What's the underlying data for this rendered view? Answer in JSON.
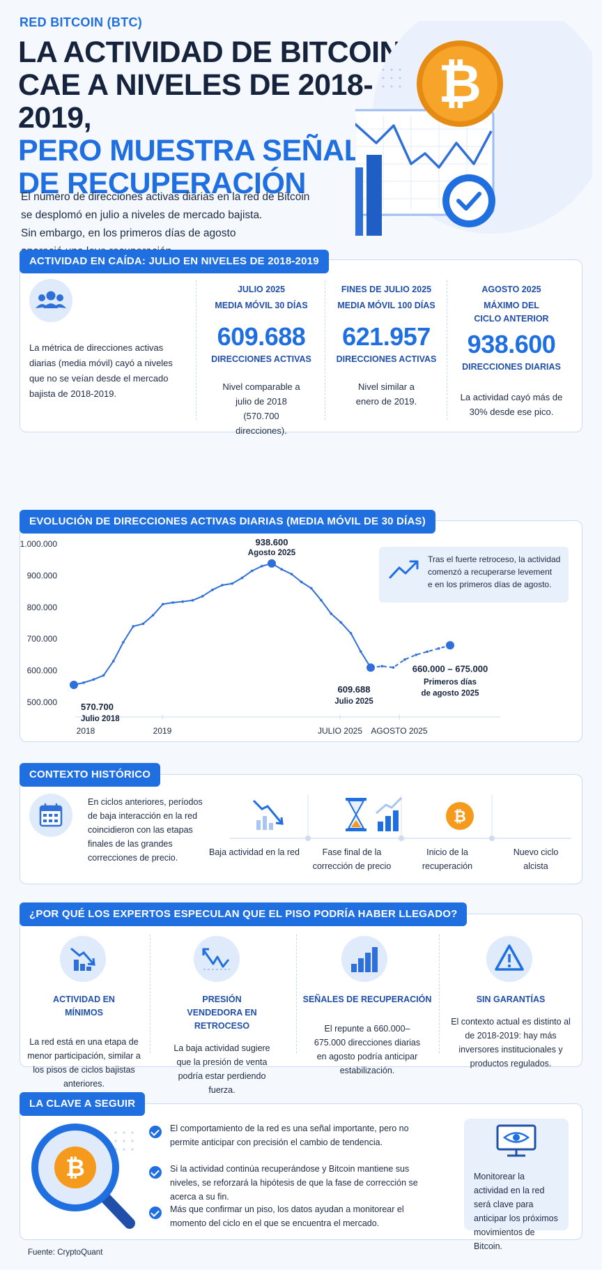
{
  "header": {
    "eyebrow": "RED BITCOIN (BTC)",
    "title_lines": [
      "LA ACTIVIDAD DE BITCOIN",
      "CAE A NIVELES DE 2018-2019,",
      "PERO MUESTRA SEÑALES",
      "DE RECUPERACIÓN"
    ],
    "intro_lines": [
      "El número de direcciones activas diarias en la red de Bitcoin",
      "se desplomó en julio a niveles de mercado bajista.",
      "Sin embargo, en los primeros días de agosto",
      "apareció una leve recuperación."
    ]
  },
  "activity": {
    "pill": "ACTIVIDAD EN CAÍDA: JULIO EN NIVELES DE 2018-2019",
    "icon": "users-icon",
    "desc": "La métrica de direcciones activas diarias (media móvil) cayó a niveles que no se veían desde el mercado bajista de 2018-2019.",
    "stats": [
      {
        "h1": "JULIO 2025",
        "h2": "MEDIA MÓVIL 30 DÍAS",
        "value": "609.688",
        "unit": "DIRECCIONES ACTIVAS",
        "note": "Nivel comparable a julio de 2018 (570.700 direcciones)."
      },
      {
        "h1": "FINES DE JULIO 2025",
        "h2": "MEDIA MÓVIL 100 DÍAS",
        "value": "621.957",
        "unit": "DIRECCIONES ACTIVAS",
        "note": "Nivel similar a enero de 2019."
      },
      {
        "h1": "AGOSTO 2025",
        "h2": "MÁXIMO DEL CICLO ANTERIOR",
        "value": "938.600",
        "unit": "DIRECCIONES DIARIAS",
        "note": "La actividad cayó más de 30% desde ese pico."
      }
    ]
  },
  "chart_data": {
    "type": "line",
    "title": "EVOLUCIÓN DE DIRECCIONES ACTIVAS DIARIAS (MEDIA MÓVIL DE 30 DÍAS)",
    "ylim": [
      500000,
      1000000
    ],
    "y_ticks": [
      "1.000.000",
      "900.000",
      "800.000",
      "700.000",
      "600.000",
      "500.000"
    ],
    "x_ticks": [
      "2018",
      "2019",
      "JULIO 2025",
      "AGOSTO 2025"
    ],
    "series": [
      {
        "values": [
          555000,
          562000,
          572000,
          585000,
          630000,
          690000,
          740000,
          748000,
          775000,
          810000,
          815000,
          818000,
          822000,
          835000,
          855000,
          870000,
          875000,
          893000,
          915000,
          930000,
          938600,
          920000,
          905000,
          880000,
          860000,
          822000,
          780000,
          752000,
          718000,
          660000,
          609688
        ]
      },
      {
        "values": [
          609688,
          614000,
          610000,
          635000,
          650000,
          660000,
          670000,
          680000
        ],
        "style": "dashed"
      }
    ],
    "annotations": [
      {
        "value": "570.700",
        "label": "Julio 2018"
      },
      {
        "value": "938.600",
        "label": "Agosto 2025"
      },
      {
        "value": "609.688",
        "label": "Julio 2025"
      },
      {
        "value": "660.000 – 675.000",
        "label": "Primeros días de agosto 2025"
      }
    ],
    "callout": "Tras el fuerte retroceso, la actividad comenzó a recuperarse levemente en los primeros días de agosto.",
    "callout_icon": "trend-up-icon",
    "colors": {
      "line": "#2f6fd8",
      "point": "#2f6fd8"
    }
  },
  "context": {
    "pill": "CONTEXTO HISTÓRICO",
    "icon": "calendar-icon",
    "desc_lines": [
      "En ciclos anteriores, períodos",
      "de baja interacción en la red",
      "coincidieron con las etapas",
      "finales de las grandes",
      "correcciones de precio."
    ],
    "steps": [
      {
        "icon": "declining-chart-icon",
        "label": "Baja actividad en la red"
      },
      {
        "icon": "hourglass-icon",
        "label": "Fase final de la corrección de precio"
      },
      {
        "icon": "rising-chart-icon",
        "label": "Inicio de la recuperación"
      },
      {
        "icon": "bitcoin-icon",
        "label": "Nuevo ciclo alcista"
      }
    ]
  },
  "experts": {
    "pill": "¿POR QUÉ LOS EXPERTOS ESPECULAN QUE EL PISO PODRÍA HABER LLEGADO?",
    "items": [
      {
        "icon": "decline-bars-icon",
        "title": "ACTIVIDAD EN MÍNIMOS",
        "desc": "La red está en una etapa de menor participación, similar a los pisos de ciclos bajistas anteriores."
      },
      {
        "icon": "zigzag-arrow-icon",
        "title": "PRESIÓN VENDEDORA EN RETROCESO",
        "desc": "La baja actividad sugiere que la presión de venta podría estar perdiendo fuerza."
      },
      {
        "icon": "rising-bars-icon",
        "title": "SEÑALES DE RECUPERACIÓN",
        "desc": "El repunte a 660.000–675.000 direcciones diarias en agosto podría anticipar estabilización."
      },
      {
        "icon": "warning-icon",
        "title": "SIN GARANTÍAS",
        "desc": "El contexto actual es distinto al de 2018-2019: hay más inversores institucionales y productos regulados."
      }
    ]
  },
  "key": {
    "pill": "LA CLAVE A SEGUIR",
    "illustration": "magnifier-bitcoin-icon",
    "points": [
      "El comportamiento de la red es una señal importante, pero no permite anticipar con precisión el cambio de tendencia.",
      "Si la actividad continúa recuperándose y Bitcoin mantiene sus niveles, se reforzará la hipótesis de que la fase de corrección se acerca a su fin.",
      "Más que confirmar un piso, los datos ayudan a monitorear el momento del ciclo en el que se encuentra el mercado."
    ],
    "side_icon": "monitor-eye-icon",
    "side_text": "Monitorear la actividad en la red será clave para anticipar los próximos movimientos de Bitcoin."
  },
  "source": "Fuente: CryptoQuant"
}
